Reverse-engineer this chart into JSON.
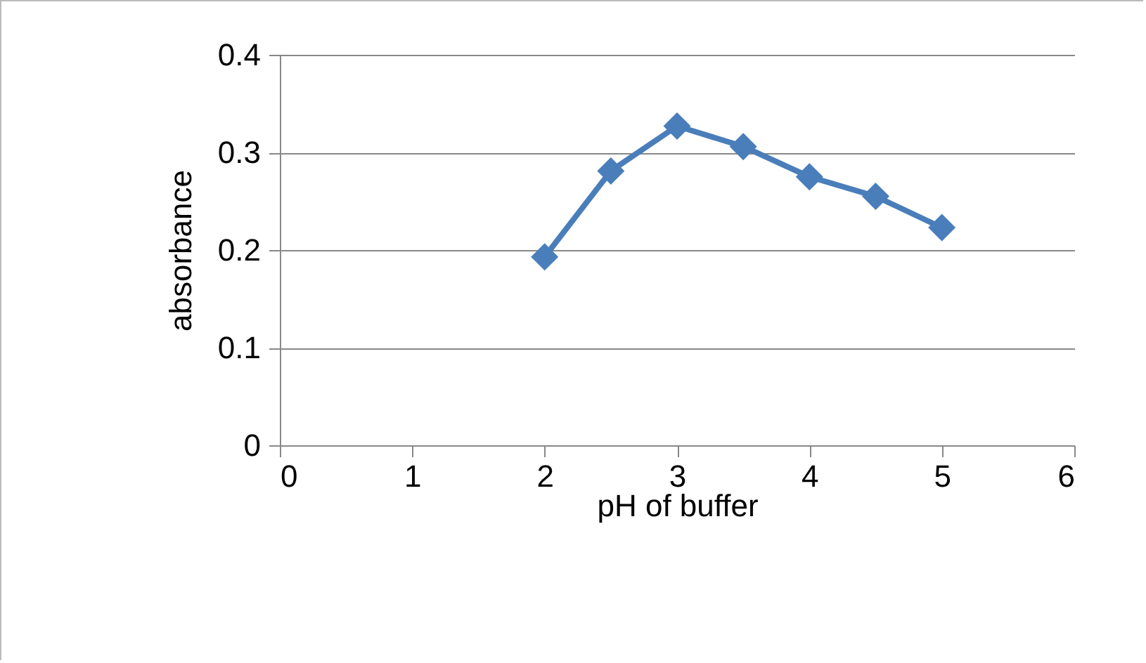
{
  "chart_data": {
    "type": "line",
    "xlabel": "pH of buffer",
    "ylabel": "absorbance",
    "x": [
      2,
      2.5,
      3,
      3.5,
      4,
      4.5,
      5
    ],
    "series": [
      {
        "color": "#4a7ebb",
        "values": [
          0.193,
          0.281,
          0.327,
          0.306,
          0.275,
          0.255,
          0.223
        ]
      }
    ],
    "xlim": [
      0,
      6
    ],
    "xticks": [
      0,
      1,
      2,
      3,
      4,
      5,
      6
    ],
    "ylim": [
      0,
      0.4
    ],
    "yticks": [
      0,
      0.1,
      0.2,
      0.3,
      0.4
    ],
    "grid": "y",
    "marker": "diamond",
    "line_style": "solid"
  }
}
